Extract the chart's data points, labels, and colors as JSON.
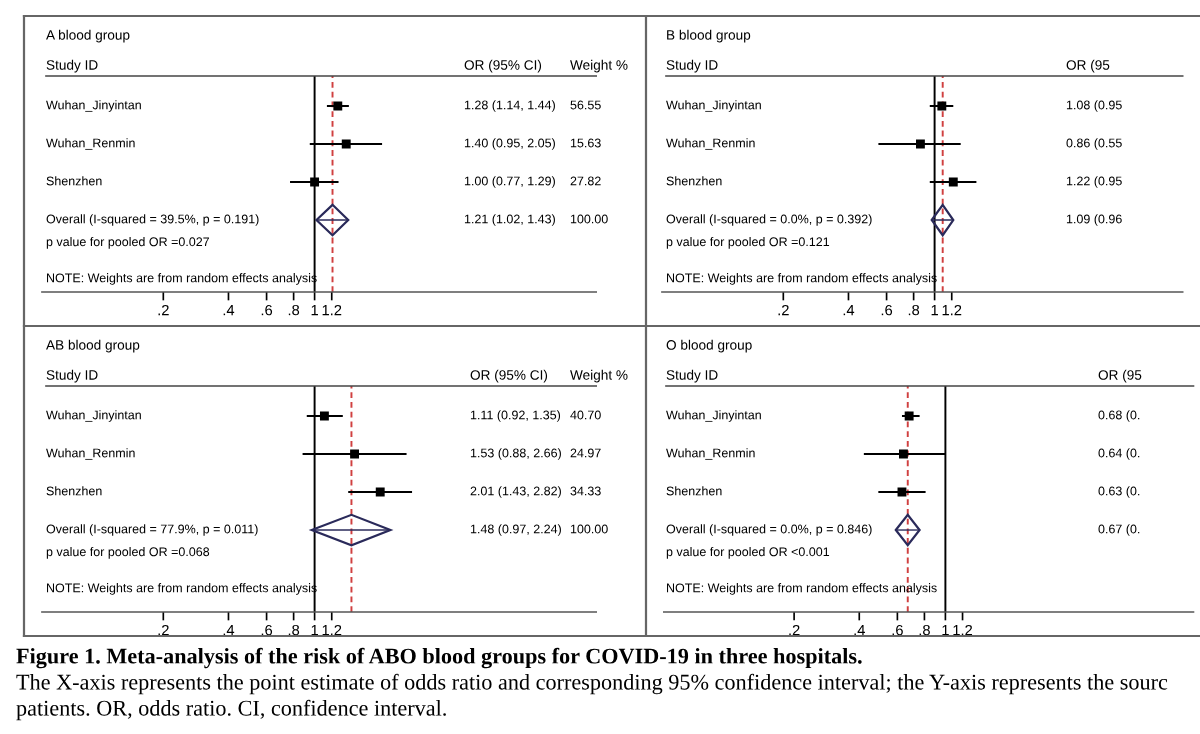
{
  "chart_data": [
    {
      "type": "scatter",
      "orientation": "horizontal",
      "title": "A blood group",
      "ylabel": "Study ID",
      "categories": [
        "Wuhan_Jinyintan",
        "Wuhan_Renmin",
        "Shenzhen",
        "Overall (I-squared = 39.5%, p = 0.191)"
      ],
      "series": [
        {
          "color": "#000000",
          "marker": "square",
          "values": [
            1.28,
            1.4,
            1.0,
            null
          ],
          "errors": [
            [
              1.14,
              1.44
            ],
            [
              0.95,
              2.05
            ],
            [
              0.77,
              1.29
            ],
            null
          ]
        },
        {
          "color": "#2a2a5a",
          "marker": "diamond",
          "values": [
            null,
            null,
            null,
            1.21
          ],
          "errors": [
            null,
            null,
            null,
            [
              1.02,
              1.43
            ]
          ]
        }
      ],
      "xlim": [
        0.055,
        20
      ],
      "log": "x",
      "xticks": [
        {
          "value": 0.2,
          "label": ".2"
        },
        {
          "value": 0.4,
          "label": ".4"
        },
        {
          "value": 0.6,
          "label": ".6"
        },
        {
          "value": 0.8,
          "label": ".8"
        },
        1,
        1.2
      ],
      "ref_lines": [
        {
          "axis": "x",
          "value": 1,
          "color": "#000000",
          "line_style": "solid"
        },
        {
          "axis": "x",
          "value": 1.21,
          "color": "#d04040",
          "line_style": "dashed"
        }
      ],
      "annotations": [
        "OR (95% CI)",
        "Weight %",
        "1.28 (1.14, 1.44)",
        "1.40 (0.95, 2.05)",
        "1.00 (0.77, 1.29)",
        "1.21 (1.02, 1.43)",
        "56.55",
        "15.63",
        "27.82",
        "100.00",
        "p value for pooled OR =0.027",
        "NOTE: Weights are from random effects analysis"
      ]
    },
    {
      "type": "scatter",
      "orientation": "horizontal",
      "title": "B blood group",
      "ylabel": "Study ID",
      "categories": [
        "Wuhan_Jinyintan",
        "Wuhan_Renmin",
        "Shenzhen",
        "Overall (I-squared = 0.0%, p = 0.392)"
      ],
      "series": [
        {
          "color": "#000000",
          "marker": "square",
          "values": [
            1.08,
            0.86,
            1.22,
            null
          ],
          "errors": [
            [
              0.95,
              1.22
            ],
            [
              0.55,
              1.32
            ],
            [
              0.95,
              1.56
            ],
            null
          ]
        },
        {
          "color": "#2a2a5a",
          "marker": "diamond",
          "values": [
            null,
            null,
            null,
            1.09
          ],
          "errors": [
            null,
            null,
            null,
            [
              0.97,
              1.22
            ]
          ]
        }
      ],
      "xlim": [
        0.055,
        14
      ],
      "log": "x",
      "xticks": [
        {
          "value": 0.2,
          "label": ".2"
        },
        {
          "value": 0.4,
          "label": ".4"
        },
        {
          "value": 0.6,
          "label": ".6"
        },
        {
          "value": 0.8,
          "label": ".8"
        },
        1,
        1.2
      ],
      "ref_lines": [
        {
          "axis": "x",
          "value": 1,
          "color": "#000000",
          "line_style": "solid"
        },
        {
          "axis": "x",
          "value": 1.09,
          "color": "#d04040",
          "line_style": "dashed"
        }
      ],
      "annotations": [
        "OR (95",
        "1.08 (0.95",
        "0.86 (0.55",
        "1.22 (0.95",
        "1.09 (0.96",
        "p value for pooled OR =0.121",
        "NOTE: Weights are from random effects analysis"
      ]
    },
    {
      "type": "scatter",
      "orientation": "horizontal",
      "title": "AB blood group",
      "ylabel": "Study ID",
      "categories": [
        "Wuhan_Jinyintan",
        "Wuhan_Renmin",
        "Shenzhen",
        "Overall (I-squared = 77.9%, p = 0.011)"
      ],
      "series": [
        {
          "color": "#000000",
          "marker": "square",
          "values": [
            1.11,
            1.53,
            2.01,
            null
          ],
          "errors": [
            [
              0.92,
              1.35
            ],
            [
              0.88,
              2.66
            ],
            [
              1.43,
              2.82
            ],
            null
          ]
        },
        {
          "color": "#2a2a5a",
          "marker": "diamond",
          "values": [
            null,
            null,
            null,
            1.48
          ],
          "errors": [
            null,
            null,
            null,
            [
              0.97,
              2.24
            ]
          ]
        }
      ],
      "xlim": [
        0.055,
        20
      ],
      "log": "x",
      "xticks": [
        {
          "value": 0.2,
          "label": ".2"
        },
        {
          "value": 0.4,
          "label": ".4"
        },
        {
          "value": 0.6,
          "label": ".6"
        },
        {
          "value": 0.8,
          "label": ".8"
        },
        1,
        1.2
      ],
      "ref_lines": [
        {
          "axis": "x",
          "value": 1,
          "color": "#000000",
          "line_style": "solid"
        },
        {
          "axis": "x",
          "value": 1.48,
          "color": "#d04040",
          "line_style": "dashed"
        }
      ],
      "annotations": [
        "OR (95% CI)",
        "Weight %",
        "1.11 (0.92, 1.35)",
        "1.53 (0.88, 2.66)",
        "2.01 (1.43, 2.82)",
        "1.48 (0.97, 2.24)",
        "40.70",
        "24.97",
        "34.33",
        "100.00",
        "p value for pooled OR =0.068",
        "NOTE: Weights are from random effects analysis"
      ]
    },
    {
      "type": "scatter",
      "orientation": "horizontal",
      "title": "O blood group",
      "ylabel": "Study ID",
      "categories": [
        "Wuhan_Jinyintan",
        "Wuhan_Renmin",
        "Shenzhen",
        "Overall (I-squared = 0.0%, p = 0.846)"
      ],
      "series": [
        {
          "color": "#000000",
          "marker": "square",
          "values": [
            0.68,
            0.64,
            0.63,
            null
          ],
          "errors": [
            [
              0.63,
              0.76
            ],
            [
              0.42,
              1.0
            ],
            [
              0.49,
              0.81
            ],
            null
          ]
        },
        {
          "color": "#2a2a5a",
          "marker": "diamond",
          "values": [
            null,
            null,
            null,
            0.67
          ],
          "errors": [
            null,
            null,
            null,
            [
              0.59,
              0.76
            ]
          ]
        }
      ],
      "xlim": [
        0.05,
        14
      ],
      "log": "x",
      "xticks": [
        {
          "value": 0.2,
          "label": ".2"
        },
        {
          "value": 0.4,
          "label": ".4"
        },
        {
          "value": 0.6,
          "label": ".6"
        },
        {
          "value": 0.8,
          "label": ".8"
        },
        1,
        1.2
      ],
      "ref_lines": [
        {
          "axis": "x",
          "value": 1,
          "color": "#000000",
          "line_style": "solid"
        },
        {
          "axis": "x",
          "value": 0.67,
          "color": "#d04040",
          "line_style": "dashed"
        }
      ],
      "annotations": [
        "OR (95",
        "0.68 (0.",
        "0.64 (0.",
        "0.63 (0.",
        "0.67 (0.",
        "p value for pooled OR <0.001",
        "NOTE: Weights are from random effects analysis"
      ]
    },
    {
      "type": "other",
      "title": "Figure 1. Meta-analysis of the risk of ABO blood groups for COVID-19 in three hospitals.",
      "annotations": [
        "The X-axis represents the point estimate of odds ratio and corresponding 95% confidence interval; the Y-axis represents the sourc",
        "patients. OR, odds ratio. CI, confidence interval."
      ]
    }
  ]
}
